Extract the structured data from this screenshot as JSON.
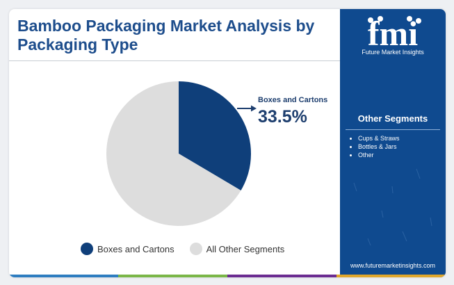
{
  "header": {
    "title": "Bamboo Packaging Market Analysis by Packaging Type"
  },
  "chart_data": {
    "type": "pie",
    "title": "Bamboo Packaging Market Analysis by Packaging Type",
    "categories": [
      "Boxes and Cartons",
      "All Other Segments"
    ],
    "values": [
      33.5,
      66.5
    ],
    "colors": [
      "#0f3f7a",
      "#dddddd"
    ],
    "legend_position": "bottom",
    "callout": {
      "label": "Boxes and Cartons",
      "value": "33.5%"
    }
  },
  "legend": {
    "items": [
      {
        "label": "Boxes and Cartons",
        "color": "#0f3f7a"
      },
      {
        "label": "All Other Segments",
        "color": "#dddddd"
      }
    ]
  },
  "sidebar": {
    "logo_text": "fmi",
    "logo_subtitle": "Future Market Insights",
    "segments_title": "Other Segments",
    "segments": [
      "Cups & Straws",
      "Bottles & Jars",
      "Other"
    ],
    "url": "www.futuremarketinsights.com"
  },
  "colors": {
    "title": "#1d4d8c",
    "sidebar_bg": "#0f4a8f",
    "bottom_bar": [
      "#2e7dc0",
      "#7ab648",
      "#6b2c91",
      "#e0a72c"
    ]
  }
}
